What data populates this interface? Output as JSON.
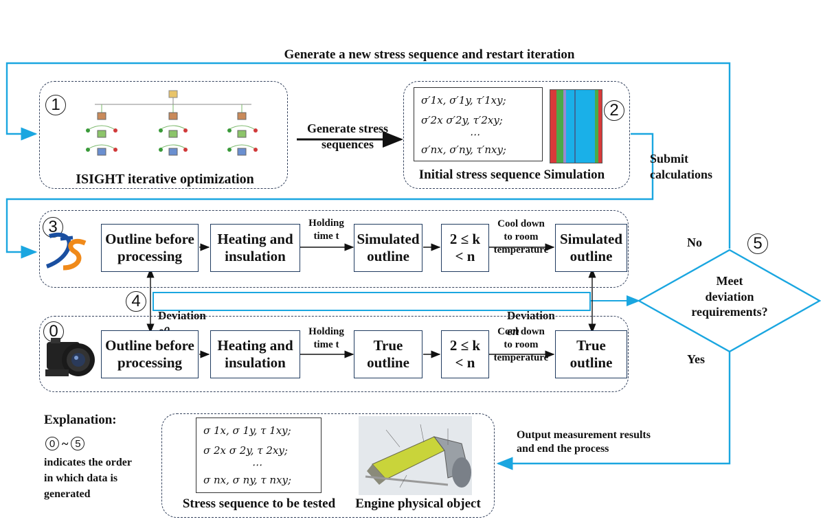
{
  "top_loop_label": "Generate a new stress sequence and restart iteration",
  "step_numbers": {
    "s1": "1",
    "s2": "2",
    "s3": "3",
    "s4": "4",
    "s5": "5",
    "s0": "0"
  },
  "isight": {
    "caption": "ISIGHT iterative optimization"
  },
  "generate_stress_label": "Generate stress\nsequences",
  "initial": {
    "caption": "Initial stress sequence Simulation",
    "rows": [
      "σ′1x, σ′1y, τ′1xy;",
      "σ′2x σ′2y, τ′2xy;",
      "⋯",
      "σ′nx, σ′ny, τ′nxy;"
    ]
  },
  "submit_label": "Submit\ncalculations",
  "sim_row": {
    "outline_before": "Outline before\nprocessing",
    "heating": "Heating and\ninsulation",
    "holding": "Holding\ntime t",
    "simulated_outline": "Simulated\noutline",
    "k_range": "2 ≤ k\n< n",
    "cool": "Cool down\nto room\ntemperature",
    "final": "Simulated\noutline"
  },
  "true_row": {
    "outline_before": "Outline before\nprocessing",
    "heating": "Heating and\ninsulation",
    "holding": "Holding\ntime t",
    "true_outline": "True\noutline",
    "k_range": "2 ≤ k\n< n",
    "cool": "Cool down\nto room\ntemperature",
    "final": "True\noutline"
  },
  "deviation": {
    "left_text": "Deviation",
    "left_sym": "e0",
    "right_text": "Deviation",
    "right_sym": "en"
  },
  "decision": {
    "text": "Meet\ndeviation\nrequirements?",
    "no_label": "No",
    "yes_label": "Yes"
  },
  "output_label": "Output measurement results\nand end the process",
  "explanation": {
    "title": "Explanation:",
    "range_start": "0",
    "range_sep": "~",
    "range_end": "5",
    "text": "indicates the order\nin which data is\ngenerated"
  },
  "tested": {
    "caption": "Stress sequence to be tested",
    "rows": [
      "σ 1x, σ 1y, τ 1xy;",
      "σ 2x σ 2y, τ 2xy;",
      "⋯",
      "σ nx, σ ny, τ nxy;"
    ]
  },
  "engine": {
    "caption": "Engine physical object"
  },
  "colors": {
    "flow_line": "#1aa6e0",
    "box_border": "#1f3a5f"
  }
}
